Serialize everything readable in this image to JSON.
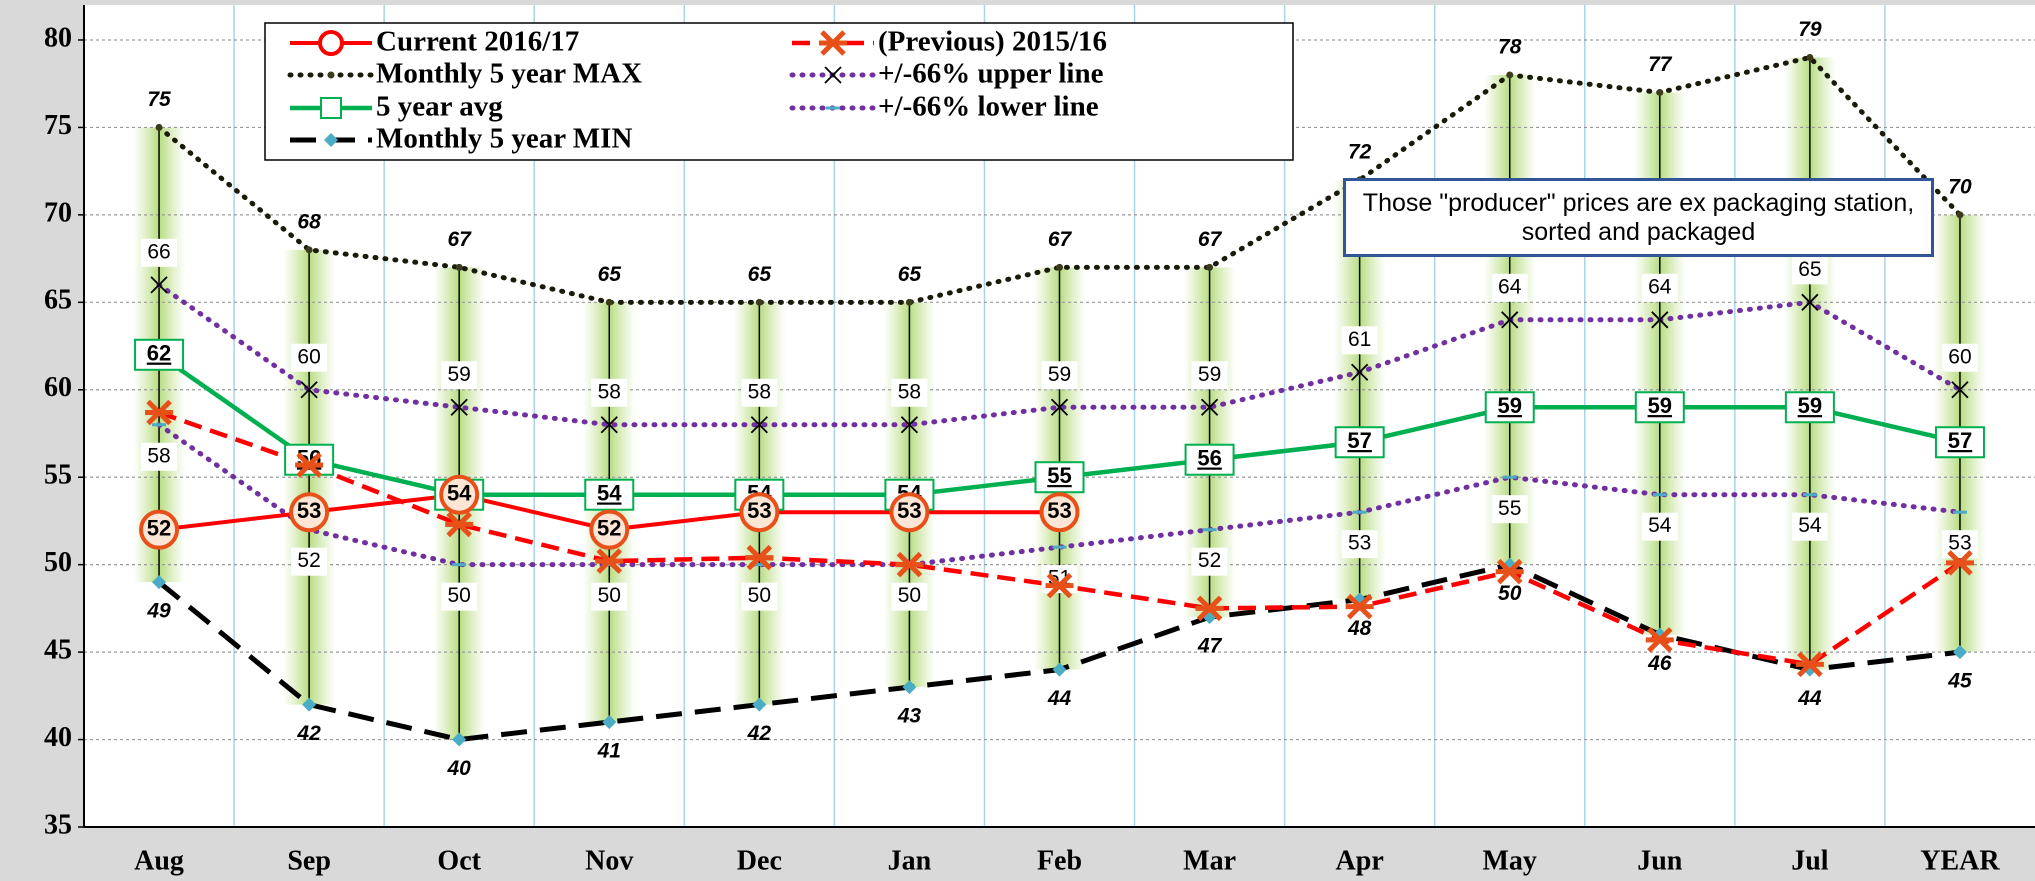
{
  "chart_data": {
    "type": "line",
    "categories": [
      "Aug",
      "Sep",
      "Oct",
      "Nov",
      "Dec",
      "Jan",
      "Feb",
      "Mar",
      "Apr",
      "May",
      "Jun",
      "Jul",
      "YEAR"
    ],
    "series": [
      {
        "name": "Current 2016/17",
        "color": "#ff0000",
        "values": [
          52,
          53,
          54,
          52,
          53,
          53,
          53,
          null,
          null,
          null,
          null,
          null,
          null
        ]
      },
      {
        "name": "(Previous) 2015/16",
        "color": "#ff0000",
        "values": [
          58.7,
          55.7,
          52.3,
          50.2,
          50.4,
          50,
          48.8,
          47.5,
          47.6,
          49.6,
          45.7,
          44.3,
          50.1
        ]
      },
      {
        "name": "Monthly 5 year MAX",
        "color": "#000000",
        "values": [
          75,
          68,
          67,
          65,
          65,
          65,
          67,
          67,
          72,
          78,
          77,
          79,
          70
        ]
      },
      {
        "name": "+/-66% upper line",
        "color": "#7030a0",
        "values": [
          66,
          60,
          59,
          58,
          58,
          58,
          59,
          59,
          61,
          64,
          64,
          65,
          60
        ]
      },
      {
        "name": "5 year avg",
        "color": "#00b050",
        "values": [
          62,
          56,
          54,
          54,
          54,
          54,
          55,
          56,
          57,
          59,
          59,
          59,
          57
        ]
      },
      {
        "name": "+/-66% lower line",
        "color": "#7030a0",
        "values": [
          58,
          52,
          50,
          50,
          50,
          50,
          51,
          52,
          53,
          55,
          54,
          54,
          53
        ]
      },
      {
        "name": "Monthly 5 year MIN",
        "color": "#000000",
        "values": [
          49,
          42,
          40,
          41,
          42,
          43,
          44,
          47,
          48,
          50,
          46,
          44,
          45
        ]
      }
    ],
    "ylim": [
      35,
      82
    ],
    "yticks": [
      35,
      40,
      45,
      50,
      55,
      60,
      65,
      70,
      75,
      80
    ],
    "grid": true,
    "annotation": "Those \"producer\" prices are ex packaging station, sorted and packaged"
  }
}
